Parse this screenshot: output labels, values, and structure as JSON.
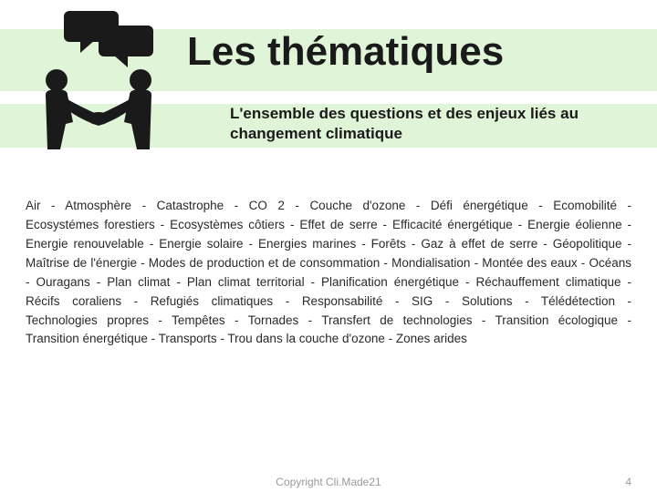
{
  "colors": {
    "band": "#e0f4d8",
    "text": "#1a1a1a",
    "body_text": "#2a2a2a",
    "footer_text": "#9a9a9a",
    "icon": "#1a1a1a",
    "background": "#ffffff"
  },
  "title": "Les thématiques",
  "subtitle": "L'ensemble des questions et des enjeux liés au changement climatique",
  "keywords": [
    "Air",
    "Atmosphère",
    "Catastrophe",
    "CO 2",
    "Couche d'ozone",
    "Défi énergétique",
    "Ecomobilité",
    "Ecosystémes forestiers",
    "Ecosystèmes côtiers",
    "Effet de serre",
    "Efficacité énergétique",
    "Energie éolienne",
    "Energie renouvelable",
    "Energie solaire",
    "Energies marines",
    "Forêts",
    "Gaz à effet de serre",
    "Géopolitique",
    "Maîtrise de l'énergie",
    "Modes de production et de consommation",
    "Mondialisation",
    "Montée des eaux",
    "Océans",
    "Ouragans",
    "Plan climat",
    "Plan climat territorial",
    "Planification énergétique",
    "Réchauffement climatique",
    "Récifs coraliens",
    "Refugiés climatiques",
    "Responsabilité",
    "SIG",
    "Solutions",
    "Télédétection",
    "Technologies propres",
    "Tempêtes",
    "Tornades",
    "Transfert de technologies",
    "Transition écologique",
    "Transition énergétique",
    "Transports",
    "Trou dans la couche d'ozone",
    "Zones arides"
  ],
  "separator": " - ",
  "copyright": "Copyright Cli.Made21",
  "page_number": "4",
  "typography": {
    "title_fontsize": 44,
    "subtitle_fontsize": 17,
    "body_fontsize": 13.5,
    "footer_fontsize": 12,
    "body_lineheight": 1.55
  },
  "icon_name": "handshake-speech-icon"
}
